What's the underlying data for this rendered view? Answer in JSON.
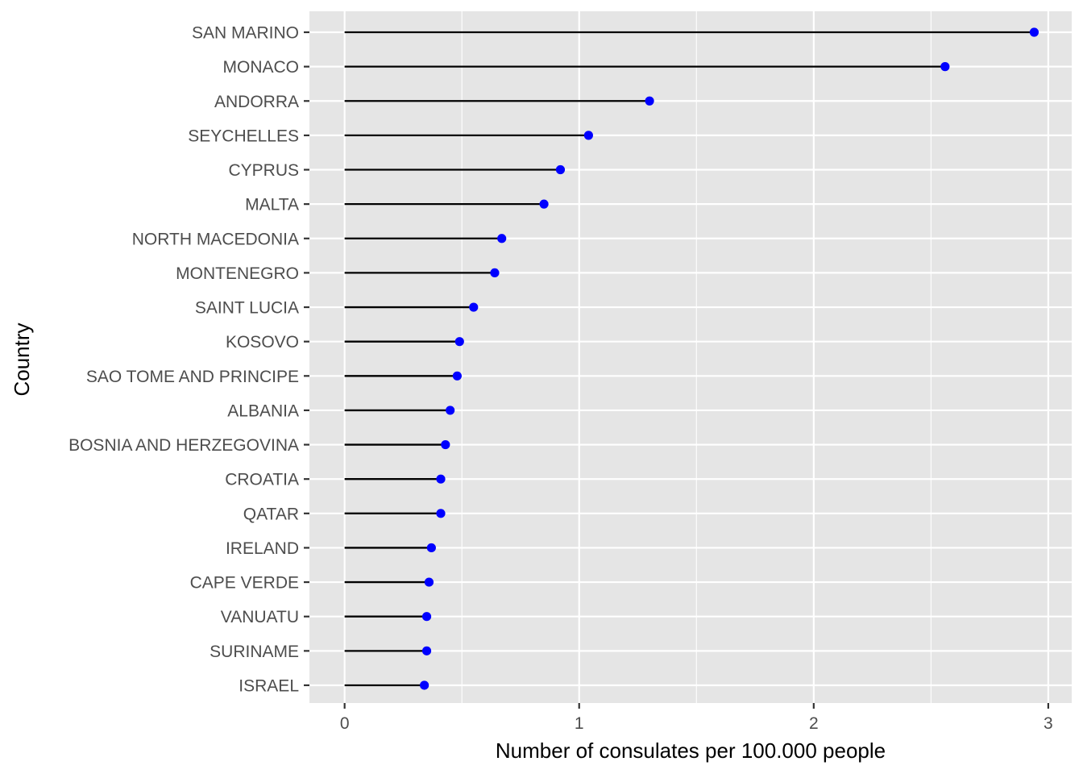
{
  "chart_data": {
    "type": "lollipop",
    "xlabel": "Number of consulates per 100.000 people",
    "ylabel": "Country",
    "xlim": [
      -0.15,
      3.1
    ],
    "x_ticks": [
      0,
      1,
      2,
      3
    ],
    "x_tick_labels": [
      "0",
      "1",
      "2",
      "3"
    ],
    "x_minor_ticks": [
      0.5,
      1.5,
      2.5
    ],
    "grid": true,
    "legend": "none",
    "colors": {
      "point": "#0000ff",
      "stem": "#000000",
      "panel": "#e5e5e5",
      "grid": "#ffffff"
    },
    "categories": [
      "SAN MARINO",
      "MONACO",
      "ANDORRA",
      "SEYCHELLES",
      "CYPRUS",
      "MALTA",
      "NORTH MACEDONIA",
      "MONTENEGRO",
      "SAINT LUCIA",
      "KOSOVO",
      "SAO TOME AND PRINCIPE",
      "ALBANIA",
      "BOSNIA AND HERZEGOVINA",
      "CROATIA",
      "QATAR",
      "IRELAND",
      "CAPE VERDE",
      "VANUATU",
      "SURINAME",
      "ISRAEL"
    ],
    "values": [
      2.94,
      2.56,
      1.3,
      1.04,
      0.92,
      0.85,
      0.67,
      0.64,
      0.55,
      0.49,
      0.48,
      0.45,
      0.43,
      0.41,
      0.41,
      0.37,
      0.36,
      0.35,
      0.35,
      0.34
    ]
  }
}
